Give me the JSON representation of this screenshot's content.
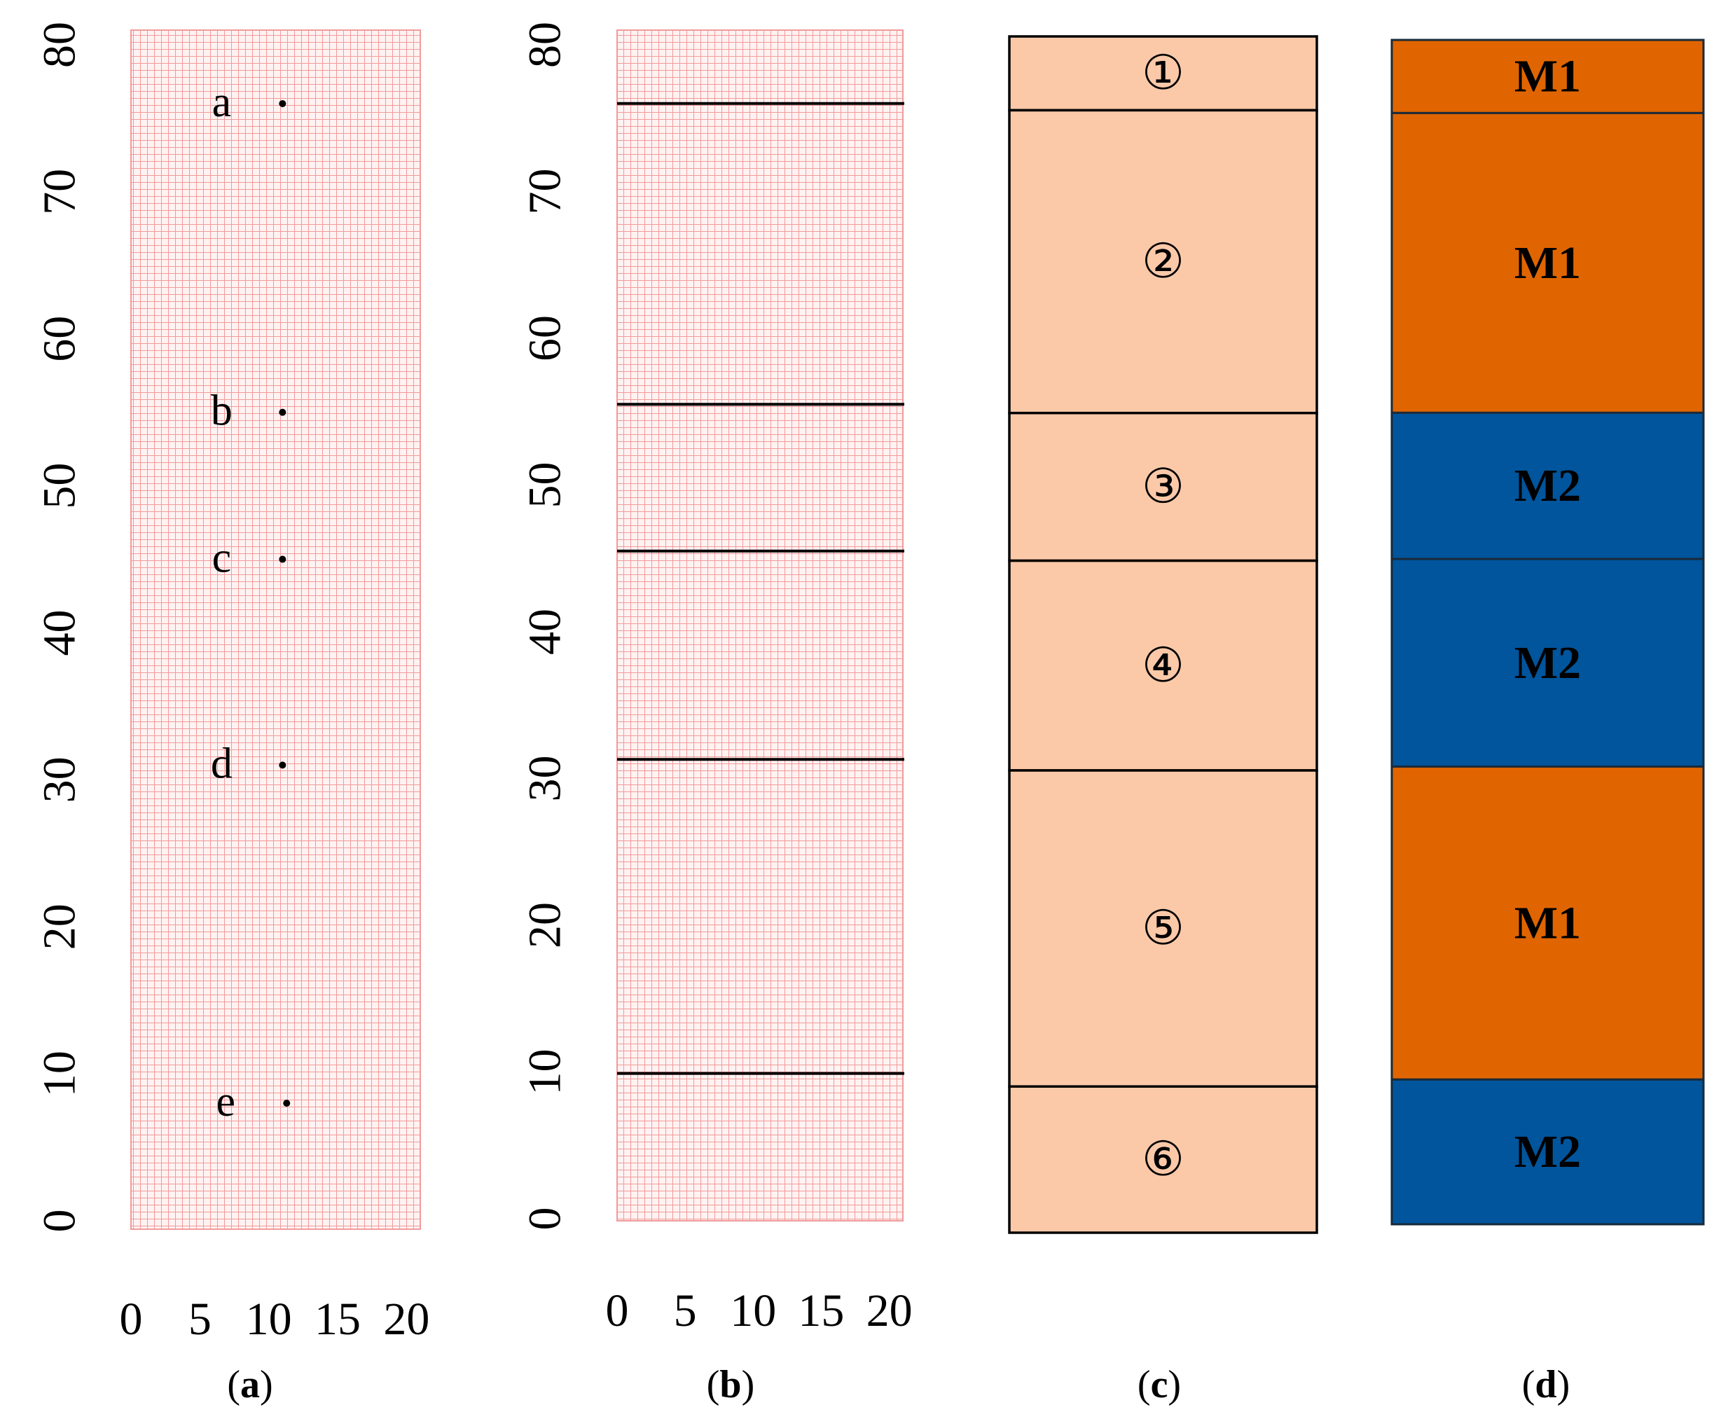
{
  "panels": {
    "a": {
      "caption_open": "(",
      "caption_letter": "a",
      "caption_close": ")",
      "y_ticks": [
        "0",
        "10",
        "20",
        "30",
        "40",
        "50",
        "60",
        "70",
        "80"
      ],
      "x_ticks": [
        "0",
        "5",
        "10",
        "15",
        "20"
      ],
      "monitor_points": [
        {
          "label": "a",
          "x": 11,
          "y": 76
        },
        {
          "label": "b",
          "x": 11,
          "y": 55
        },
        {
          "label": "c",
          "x": 11,
          "y": 45
        },
        {
          "label": "d",
          "x": 11,
          "y": 31
        },
        {
          "label": "e",
          "x": 11.3,
          "y": 8
        }
      ]
    },
    "b": {
      "caption_open": "(",
      "caption_letter": "b",
      "caption_close": ")",
      "y_ticks": [
        "0",
        "10",
        "20",
        "30",
        "40",
        "50",
        "60",
        "70",
        "80"
      ],
      "x_ticks": [
        "0",
        "5",
        "10",
        "15",
        "20"
      ],
      "boundaries": [
        76,
        55.5,
        45.5,
        31.3,
        9.9
      ]
    },
    "c": {
      "caption_open": "(",
      "caption_letter": "c",
      "caption_close": ")",
      "layers": [
        {
          "number": "①",
          "top": 81,
          "bottom": 76
        },
        {
          "number": "②",
          "top": 76,
          "bottom": 55.5
        },
        {
          "number": "③",
          "top": 55.5,
          "bottom": 45.5
        },
        {
          "number": "④",
          "top": 45.5,
          "bottom": 31.3
        },
        {
          "number": "⑤",
          "top": 31.3,
          "bottom": 9.9
        },
        {
          "number": "⑥",
          "top": 9.9,
          "bottom": 0
        }
      ]
    },
    "d": {
      "caption_open": "(",
      "caption_letter": "d",
      "caption_close": ")",
      "layers": [
        {
          "material": "M1",
          "top": 81,
          "bottom": 76
        },
        {
          "material": "M1",
          "top": 76,
          "bottom": 55.5
        },
        {
          "material": "M2",
          "top": 55.5,
          "bottom": 45.5
        },
        {
          "material": "M2",
          "top": 45.5,
          "bottom": 31.3
        },
        {
          "material": "M1",
          "top": 31.3,
          "bottom": 9.9
        },
        {
          "material": "M2",
          "top": 9.9,
          "bottom": 0
        }
      ]
    }
  },
  "colors": {
    "mesh_line": "#f29a9a",
    "mesh_bg": "#fff0f0",
    "layer_fill": "#fbc9a8",
    "M1": "#e06500",
    "M2": "#00559c"
  }
}
